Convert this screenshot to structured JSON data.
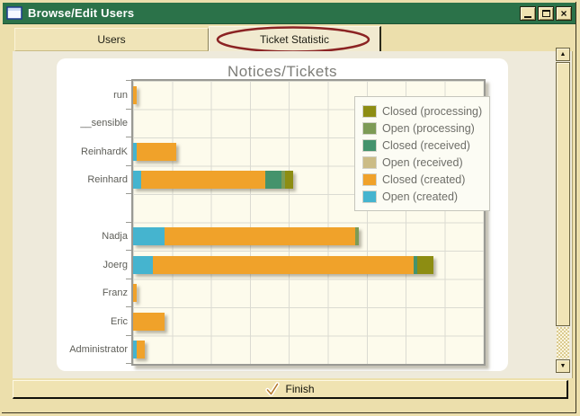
{
  "window": {
    "title": "Browse/Edit Users",
    "controls": {
      "minimize": "minimize",
      "maximize": "maximize",
      "close": "close"
    }
  },
  "tabs": [
    {
      "label": "Users",
      "active": false
    },
    {
      "label": "Ticket Statistic",
      "active": true
    }
  ],
  "annotation": {
    "shape": "ellipse",
    "target": "Ticket Statistic tab",
    "color": "#8b2323"
  },
  "scrollbar": {
    "up_icon": "▲",
    "down_icon": "▼"
  },
  "footer": {
    "finish_label": "Finish"
  },
  "colors": {
    "titlebar": "#2b7249",
    "window_bg": "#ecdfac",
    "panel_bg": "#eeeadb",
    "card_bg": "#ffffff",
    "plot_bg": "#fdfbec"
  },
  "chart_data": {
    "type": "bar",
    "orientation": "horizontal",
    "stacked": true,
    "title": "Notices/Tickets",
    "categories": [
      "run",
      "__sensible",
      "ReinhardK",
      "Reinhard",
      "",
      "Nadja",
      "Joerg",
      "Franz",
      "Eric",
      "Administrator"
    ],
    "series": [
      {
        "name": "Open (created)",
        "color": "#45b4cf",
        "values": [
          0,
          0,
          1,
          2,
          0,
          8,
          5,
          0,
          0,
          1
        ]
      },
      {
        "name": "Closed (created)",
        "color": "#f0a22a",
        "values": [
          1,
          0,
          10,
          32,
          0,
          49,
          67,
          1,
          8,
          2
        ]
      },
      {
        "name": "Open (received)",
        "color": "#cbbc85",
        "values": [
          0,
          0,
          0,
          0,
          0,
          0,
          0,
          0,
          0,
          0
        ]
      },
      {
        "name": "Closed (received)",
        "color": "#44936c",
        "values": [
          0,
          0,
          0,
          4,
          0,
          0,
          1,
          0,
          0,
          0
        ]
      },
      {
        "name": "Open (processing)",
        "color": "#7d9b55",
        "values": [
          0,
          0,
          0,
          1,
          0,
          1,
          0,
          0,
          0,
          0
        ]
      },
      {
        "name": "Closed (processing)",
        "color": "#8d8d12",
        "values": [
          0,
          0,
          0,
          2,
          0,
          0,
          4,
          0,
          0,
          0
        ]
      }
    ],
    "legend_order": [
      "Closed (processing)",
      "Open (processing)",
      "Closed (received)",
      "Open (received)",
      "Closed (created)",
      "Open (created)"
    ],
    "legend_position": "upper right",
    "xlim": [
      0,
      90
    ],
    "grid_interval": 10,
    "x_tick_labels_visible": false,
    "grid": true
  }
}
